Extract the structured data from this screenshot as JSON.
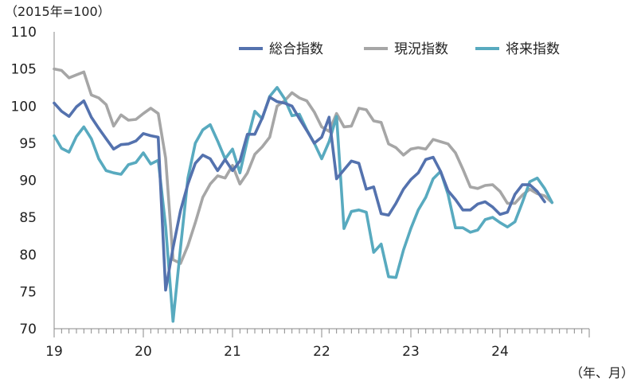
{
  "chart_data": {
    "type": "line",
    "y_unit_label": "（2015年=100）",
    "x_unit_label": "（年、月）",
    "ylim": [
      70,
      110
    ],
    "yticks": [
      70,
      75,
      80,
      85,
      90,
      95,
      100,
      105,
      110
    ],
    "year_labels": [
      "19",
      "20",
      "21",
      "22",
      "23",
      "24"
    ],
    "x_range": [
      "2019-01",
      "2024-12"
    ],
    "grid": false,
    "legend_position": "top-right",
    "series": [
      {
        "name": "総合指数",
        "color": "#5472ae",
        "start": "2019-01",
        "values": [
          100.4,
          99.3,
          98.6,
          99.9,
          100.7,
          98.5,
          97.0,
          95.6,
          94.2,
          94.8,
          94.9,
          95.3,
          96.3,
          96.0,
          95.8,
          75.2,
          80.9,
          85.9,
          89.5,
          92.3,
          93.4,
          92.9,
          91.3,
          92.8,
          91.3,
          92.6,
          96.2,
          96.2,
          98.4,
          101.2,
          100.6,
          100.4,
          100.0,
          98.3,
          96.7,
          95.0,
          95.8,
          98.5,
          90.2,
          91.4,
          92.6,
          92.3,
          88.8,
          89.1,
          85.5,
          85.3,
          86.9,
          88.8,
          90.1,
          91.0,
          92.8,
          93.1,
          91.2,
          88.6,
          87.4,
          86.0,
          86.0,
          86.8,
          87.1,
          86.4,
          85.4,
          85.7,
          88.1,
          89.4,
          89.4,
          88.5,
          87.1
        ]
      },
      {
        "name": "現況指数",
        "color": "#a6a6a6",
        "start": "2019-01",
        "values": [
          105.0,
          104.8,
          103.8,
          104.2,
          104.6,
          101.5,
          101.1,
          100.2,
          97.3,
          98.8,
          98.1,
          98.2,
          99.0,
          99.7,
          99.0,
          93.0,
          79.3,
          78.8,
          81.2,
          84.3,
          87.7,
          89.5,
          90.6,
          90.3,
          92.0,
          89.5,
          91.0,
          93.5,
          94.5,
          95.8,
          100.0,
          100.7,
          101.8,
          101.1,
          100.7,
          99.2,
          97.2,
          96.6,
          99.0,
          97.2,
          97.3,
          99.7,
          99.5,
          98.0,
          97.8,
          94.9,
          94.4,
          93.4,
          94.2,
          94.4,
          94.2,
          95.5,
          95.2,
          94.9,
          93.7,
          91.5,
          89.1,
          88.9,
          89.3,
          89.4,
          88.5,
          86.9,
          86.9,
          88.0,
          88.8,
          88.2,
          87.9,
          87.0
        ]
      },
      {
        "name": "将来指数",
        "color": "#58aabf",
        "start": "2019-01",
        "values": [
          96.0,
          94.3,
          93.8,
          95.9,
          97.2,
          95.6,
          92.9,
          91.3,
          91.0,
          90.8,
          92.1,
          92.4,
          93.7,
          92.2,
          92.7,
          83.8,
          71.0,
          80.9,
          90.3,
          95.0,
          96.8,
          97.5,
          95.3,
          92.9,
          94.2,
          91.0,
          95.4,
          99.3,
          98.3,
          101.3,
          102.5,
          101.0,
          98.7,
          98.9,
          96.8,
          95.0,
          92.9,
          95.2,
          98.6,
          83.5,
          85.8,
          86.0,
          85.7,
          80.3,
          81.4,
          77.0,
          76.9,
          80.6,
          83.5,
          86.0,
          87.7,
          90.2,
          91.2,
          88.1,
          83.6,
          83.6,
          83.0,
          83.3,
          84.7,
          85.0,
          84.3,
          83.7,
          84.4,
          87.0,
          89.8,
          90.3,
          88.9,
          87.0
        ]
      }
    ]
  }
}
